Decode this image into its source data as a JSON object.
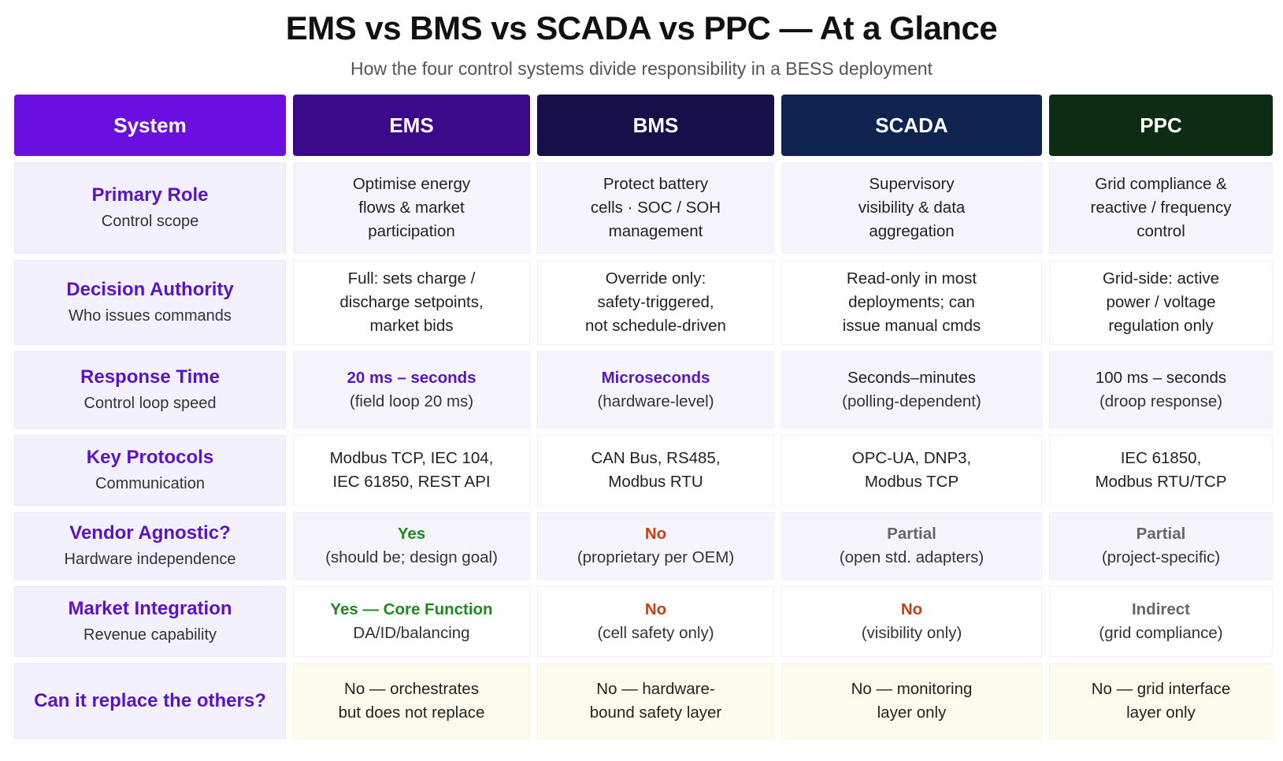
{
  "title": "EMS vs BMS vs SCADA vs PPC — At a Glance",
  "subtitle": "How the four control systems divide responsibility in a BESS deployment",
  "headers": [
    "System",
    "EMS",
    "BMS",
    "SCADA",
    "PPC"
  ],
  "colors": {
    "system": "#6a0fe0",
    "ems": "#3a0a8a",
    "bms": "#16104a",
    "scada": "#0f2350",
    "ppc": "#0d2c14",
    "label": "#5a14c7",
    "yes": "#1c8a1c",
    "no": "#c2410c",
    "partial": "#666666"
  },
  "rows": [
    {
      "label": "Primary Role",
      "sublabel": "Control scope",
      "cells": [
        {
          "lines": [
            "Optimise energy",
            "flows & market",
            "participation"
          ]
        },
        {
          "lines": [
            "Protect battery",
            "cells · SOC / SOH",
            "management"
          ]
        },
        {
          "lines": [
            "Supervisory",
            "visibility & data",
            "aggregation"
          ]
        },
        {
          "lines": [
            "Grid compliance &",
            "reactive / frequency",
            "control"
          ]
        }
      ]
    },
    {
      "label": "Decision Authority",
      "sublabel": "Who issues commands",
      "cells": [
        {
          "lines": [
            "Full: sets charge /",
            "discharge setpoints,",
            "market bids"
          ]
        },
        {
          "lines": [
            "Override only:",
            "safety-triggered,",
            "not schedule-driven"
          ]
        },
        {
          "lines": [
            "Read-only in most",
            "deployments; can",
            "issue manual cmds"
          ]
        },
        {
          "lines": [
            "Grid-side: active",
            "power / voltage",
            "regulation only"
          ]
        }
      ]
    },
    {
      "label": "Response Time",
      "sublabel": "Control loop speed",
      "cells": [
        {
          "head": "20 ms – seconds",
          "tone": "purple",
          "lines": [
            "(field loop 20 ms)"
          ]
        },
        {
          "head": "Microseconds",
          "tone": "purple",
          "lines": [
            "(hardware-level)"
          ]
        },
        {
          "head": "Seconds–minutes",
          "tone": "plain",
          "lines": [
            "(polling-dependent)"
          ]
        },
        {
          "head": "100 ms – seconds",
          "tone": "plain",
          "lines": [
            "(droop response)"
          ]
        }
      ]
    },
    {
      "label": "Key Protocols",
      "sublabel": "Communication",
      "cells": [
        {
          "lines": [
            "Modbus TCP, IEC 104,",
            "IEC 61850, REST API"
          ]
        },
        {
          "lines": [
            "CAN Bus, RS485,",
            "Modbus RTU"
          ]
        },
        {
          "lines": [
            "OPC-UA, DNP3,",
            "Modbus TCP"
          ]
        },
        {
          "lines": [
            "IEC 61850,",
            "Modbus RTU/TCP"
          ]
        }
      ]
    },
    {
      "label": "Vendor Agnostic?",
      "sublabel": "Hardware independence",
      "cells": [
        {
          "head": "Yes",
          "tone": "green",
          "lines": [
            "(should be; design goal)"
          ]
        },
        {
          "head": "No",
          "tone": "red",
          "lines": [
            "(proprietary per OEM)"
          ]
        },
        {
          "head": "Partial",
          "tone": "gray",
          "lines": [
            "(open std. adapters)"
          ]
        },
        {
          "head": "Partial",
          "tone": "gray",
          "lines": [
            "(project-specific)"
          ]
        }
      ]
    },
    {
      "label": "Market Integration",
      "sublabel": "Revenue capability",
      "cells": [
        {
          "head": "Yes — Core Function",
          "tone": "green",
          "lines": [
            "DA/ID/balancing"
          ]
        },
        {
          "head": "No",
          "tone": "red",
          "lines": [
            "(cell safety only)"
          ]
        },
        {
          "head": "No",
          "tone": "red",
          "lines": [
            "(visibility only)"
          ]
        },
        {
          "head": "Indirect",
          "tone": "gray",
          "lines": [
            "(grid compliance)"
          ]
        }
      ]
    },
    {
      "label": "Can it replace the others?",
      "sublabel": "",
      "cells": [
        {
          "lines": [
            "No — orchestrates",
            "but does not replace"
          ]
        },
        {
          "lines": [
            "No — hardware-",
            "bound safety layer"
          ]
        },
        {
          "lines": [
            "No — monitoring",
            "layer only"
          ]
        },
        {
          "lines": [
            "No — grid interface",
            "layer only"
          ]
        }
      ]
    }
  ]
}
